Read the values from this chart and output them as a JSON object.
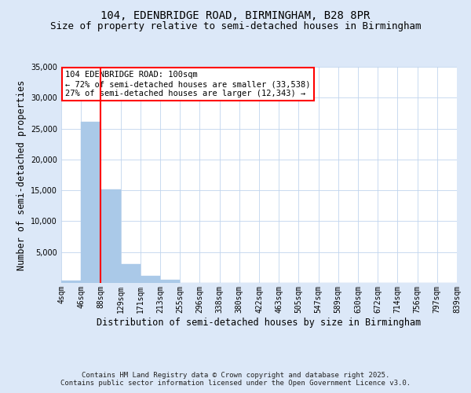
{
  "title_line1": "104, EDENBRIDGE ROAD, BIRMINGHAM, B28 8PR",
  "title_line2": "Size of property relative to semi-detached houses in Birmingham",
  "xlabel": "Distribution of semi-detached houses by size in Birmingham",
  "ylabel": "Number of semi-detached properties",
  "bin_labels": [
    "4sqm",
    "46sqm",
    "88sqm",
    "129sqm",
    "171sqm",
    "213sqm",
    "255sqm",
    "296sqm",
    "338sqm",
    "380sqm",
    "422sqm",
    "463sqm",
    "505sqm",
    "547sqm",
    "589sqm",
    "630sqm",
    "672sqm",
    "714sqm",
    "756sqm",
    "797sqm",
    "839sqm"
  ],
  "bar_values": [
    400,
    26100,
    15200,
    3100,
    1200,
    500,
    0,
    0,
    0,
    0,
    0,
    0,
    0,
    0,
    0,
    0,
    0,
    0,
    0,
    0
  ],
  "bar_color": "#aac9e8",
  "bar_edgecolor": "#aac9e8",
  "property_line_x": 2.0,
  "property_line_color": "red",
  "annotation_title": "104 EDENBRIDGE ROAD: 100sqm",
  "annotation_line1": "← 72% of semi-detached houses are smaller (33,538)",
  "annotation_line2": "27% of semi-detached houses are larger (12,343) →",
  "annotation_box_color": "white",
  "annotation_box_edgecolor": "red",
  "ylim": [
    0,
    35000
  ],
  "yticks": [
    0,
    5000,
    10000,
    15000,
    20000,
    25000,
    30000,
    35000
  ],
  "background_color": "#dce8f8",
  "plot_background": "white",
  "grid_color": "#c0d4ee",
  "footer_line1": "Contains HM Land Registry data © Crown copyright and database right 2025.",
  "footer_line2": "Contains public sector information licensed under the Open Government Licence v3.0.",
  "title_fontsize": 10,
  "subtitle_fontsize": 9,
  "axis_label_fontsize": 8.5,
  "tick_fontsize": 7,
  "annotation_fontsize": 7.5,
  "footer_fontsize": 6.5
}
